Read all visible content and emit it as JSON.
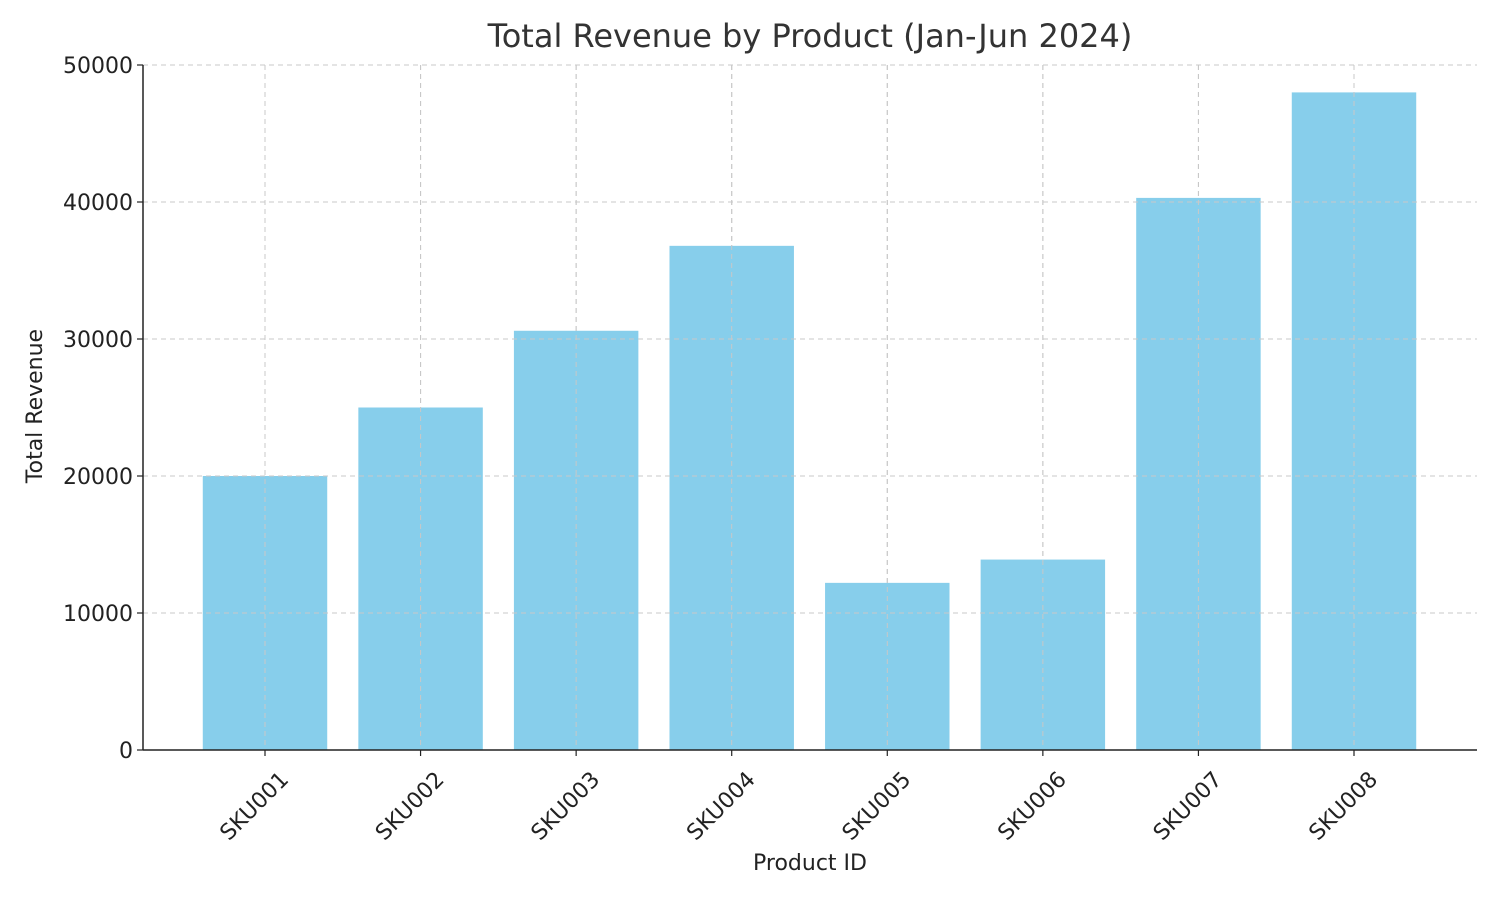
{
  "chart_data": {
    "type": "bar",
    "title": "Total Revenue by Product (Jan-Jun 2024)",
    "xlabel": "Product ID",
    "ylabel": "Total Revenue",
    "categories": [
      "SKU001",
      "SKU002",
      "SKU003",
      "SKU004",
      "SKU005",
      "SKU006",
      "SKU007",
      "SKU008"
    ],
    "values": [
      20000,
      25000,
      30600,
      36800,
      12200,
      13900,
      40300,
      48000
    ],
    "ylim": [
      0,
      50000
    ],
    "yticks": [
      0,
      10000,
      20000,
      30000,
      40000,
      50000
    ],
    "yticks_labels": [
      "0",
      "10000",
      "20000",
      "30000",
      "40000",
      "50000"
    ],
    "grid": true,
    "colors": {
      "bar": "#87ceeb",
      "grid": "#c8c8c8",
      "axis": "#222222",
      "title": "#333333"
    }
  }
}
